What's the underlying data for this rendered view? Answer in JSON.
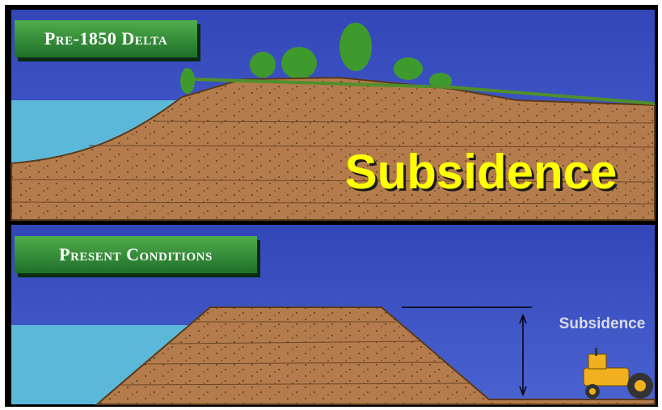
{
  "panels": [
    {
      "label": "Pre-1850 Delta",
      "annotation": "Subsidence"
    },
    {
      "label": "Present Conditions",
      "annotation": "Subsidence"
    }
  ]
}
